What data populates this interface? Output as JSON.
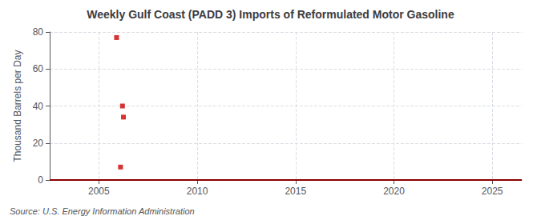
{
  "chart_data": {
    "type": "scatter",
    "title": "Weekly Gulf Coast (PADD 3) Imports of Reformulated Motor Gasoline",
    "ylabel": "Thousand Barrels per Day",
    "annotation": "Source: U.S. Energy Information Administration",
    "xlim": [
      2002.5,
      2026.5
    ],
    "ylim": [
      0,
      80
    ],
    "xticks": [
      2005,
      2010,
      2015,
      2020,
      2025
    ],
    "yticks": [
      0,
      20,
      40,
      60,
      80
    ],
    "grid": true,
    "series": [
      {
        "type": "scatter",
        "color": "#cc0000",
        "marker": "square",
        "x": [
          2005.9,
          2006.2,
          2006.25,
          2006.1
        ],
        "values": [
          77,
          40,
          34,
          7
        ]
      },
      {
        "type": "line",
        "color": "#8b0000",
        "line_style": "solid",
        "x": [
          2002.5,
          2026.5
        ],
        "values": [
          0,
          0
        ]
      }
    ]
  }
}
